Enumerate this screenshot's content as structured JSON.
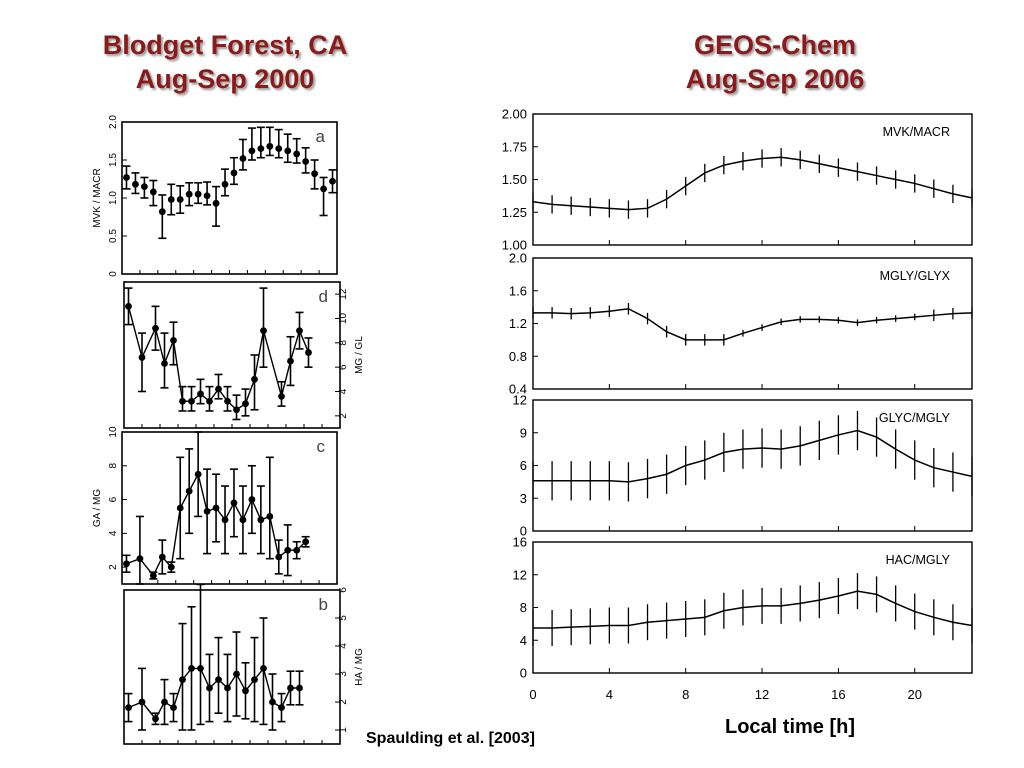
{
  "titles": {
    "left_line1": "Blodget Forest, CA",
    "left_line2": "Aug-Sep 2000",
    "right_line1": "GEOS-Chem",
    "right_line2": "Aug-Sep 2006"
  },
  "citation": "Spaulding et al. [2003]",
  "x_axis_label": "Local time [h]",
  "colors": {
    "title": "#8b1a1a",
    "line": "#000000"
  },
  "chart_data": [
    {
      "type": "scatter",
      "panel_label": "a",
      "ylabel": "MVK / MACR",
      "ylim": [
        0,
        2.0
      ],
      "yticks": [
        "0",
        "0.5",
        "1.0",
        "1.5",
        "2.0"
      ],
      "ytick_values": [
        0,
        0.5,
        1.0,
        1.5,
        2.0
      ],
      "y_axis_side": "left",
      "connected": false,
      "grid": false,
      "xlim": [
        0,
        24
      ],
      "x": [
        0.5,
        1.5,
        2.5,
        3.5,
        4.5,
        5.5,
        6.5,
        7.5,
        8.5,
        9.5,
        10.5,
        11.5,
        12.5,
        13.5,
        14.5,
        15.5,
        16.5,
        17.5,
        18.5,
        19.5,
        20.5,
        21.5,
        22.5,
        23.5
      ],
      "y": [
        1.27,
        1.18,
        1.15,
        1.08,
        0.82,
        0.98,
        0.98,
        1.05,
        1.05,
        1.03,
        0.93,
        1.18,
        1.33,
        1.52,
        1.62,
        1.65,
        1.68,
        1.65,
        1.62,
        1.58,
        1.48,
        1.32,
        1.12,
        1.22
      ],
      "yerr_low": [
        0.15,
        0.12,
        0.15,
        0.18,
        0.35,
        0.2,
        0.18,
        0.15,
        0.12,
        0.12,
        0.3,
        0.15,
        0.15,
        0.15,
        0.12,
        0.12,
        0.12,
        0.12,
        0.15,
        0.12,
        0.15,
        0.2,
        0.35,
        0.15
      ],
      "yerr_high": [
        0.15,
        0.15,
        0.12,
        0.15,
        0.22,
        0.2,
        0.18,
        0.15,
        0.15,
        0.18,
        0.22,
        0.2,
        0.2,
        0.25,
        0.3,
        0.28,
        0.25,
        0.25,
        0.22,
        0.2,
        0.18,
        0.18,
        0.15,
        0.15
      ]
    },
    {
      "type": "line",
      "panel_label": "d",
      "ylabel": "MG / GL",
      "ylim": [
        1,
        13
      ],
      "yticks": [
        "2",
        "4",
        "6",
        "8",
        "10",
        "12"
      ],
      "ytick_values": [
        2,
        4,
        6,
        8,
        10,
        12
      ],
      "y_axis_side": "right",
      "connected": true,
      "grid": false,
      "xlim": [
        0,
        24
      ],
      "x": [
        0.5,
        2.0,
        3.5,
        4.5,
        5.5,
        6.5,
        7.5,
        8.5,
        9.5,
        10.5,
        11.5,
        12.5,
        13.5,
        14.5,
        15.5,
        17.5,
        18.5,
        19.5,
        20.5
      ],
      "y": [
        11.0,
        6.8,
        9.2,
        6.3,
        8.2,
        3.2,
        3.2,
        3.8,
        3.2,
        4.2,
        3.2,
        2.5,
        3.0,
        5.0,
        9.0,
        3.6,
        6.5,
        9.0,
        7.2
      ],
      "yerr_low": [
        1.5,
        2.8,
        1.8,
        2.0,
        2.0,
        0.8,
        0.8,
        0.8,
        0.8,
        0.8,
        0.8,
        0.8,
        1.0,
        2.5,
        3.0,
        0.8,
        2.0,
        1.5,
        1.2
      ],
      "yerr_high": [
        1.5,
        2.0,
        1.8,
        2.5,
        1.5,
        1.2,
        1.2,
        1.2,
        1.2,
        1.2,
        1.2,
        1.2,
        1.2,
        2.0,
        3.5,
        1.2,
        2.0,
        1.5,
        1.2
      ]
    },
    {
      "type": "line",
      "panel_label": "c",
      "ylabel": "GA / MG",
      "ylim": [
        1,
        10
      ],
      "yticks": [
        "2",
        "4",
        "6",
        "8",
        "10"
      ],
      "ytick_values": [
        2,
        4,
        6,
        8,
        10
      ],
      "y_axis_side": "left",
      "connected": true,
      "grid": false,
      "xlim": [
        0,
        24
      ],
      "x": [
        0.5,
        2.0,
        3.5,
        4.5,
        5.5,
        6.5,
        7.5,
        8.5,
        9.5,
        10.5,
        11.5,
        12.5,
        13.5,
        14.5,
        15.5,
        16.5,
        17.5,
        18.5,
        19.5,
        20.5
      ],
      "y": [
        2.2,
        2.5,
        1.5,
        2.6,
        2.0,
        5.5,
        6.5,
        7.5,
        5.3,
        5.5,
        4.8,
        5.8,
        4.8,
        6.0,
        4.8,
        5.0,
        2.6,
        3.0,
        3.0,
        3.5
      ],
      "yerr_low": [
        0.5,
        1.5,
        0.2,
        1.0,
        0.3,
        3.0,
        2.5,
        2.5,
        2.5,
        2.0,
        2.0,
        2.0,
        2.0,
        2.0,
        2.0,
        2.5,
        1.0,
        1.5,
        0.5,
        0.3
      ],
      "yerr_high": [
        0.5,
        2.5,
        0.2,
        1.0,
        0.3,
        3.0,
        2.5,
        2.5,
        2.5,
        2.0,
        2.0,
        2.0,
        2.0,
        2.0,
        2.0,
        3.5,
        1.0,
        1.5,
        0.5,
        0.3
      ]
    },
    {
      "type": "line",
      "panel_label": "b",
      "ylabel": "HA / MG",
      "ylim": [
        0.5,
        6
      ],
      "yticks": [
        "1",
        "2",
        "3",
        "4",
        "5",
        "6"
      ],
      "ytick_values": [
        1,
        2,
        3,
        4,
        5,
        6
      ],
      "y_axis_side": "right",
      "connected": true,
      "grid": false,
      "xlim": [
        0,
        24
      ],
      "x": [
        0.5,
        2.0,
        3.5,
        4.5,
        5.5,
        6.5,
        7.5,
        8.5,
        9.5,
        10.5,
        11.5,
        12.5,
        13.5,
        14.5,
        15.5,
        16.5,
        17.5,
        18.5,
        19.5
      ],
      "y": [
        1.8,
        2.0,
        1.4,
        2.0,
        1.8,
        2.8,
        3.2,
        3.2,
        2.5,
        2.8,
        2.5,
        3.0,
        2.4,
        2.8,
        3.2,
        2.0,
        1.8,
        2.5,
        2.5
      ],
      "yerr_low": [
        0.5,
        1.0,
        0.2,
        0.8,
        0.5,
        1.8,
        2.2,
        2.0,
        1.2,
        1.2,
        1.2,
        1.5,
        1.0,
        1.5,
        2.0,
        1.0,
        0.5,
        0.6,
        0.6
      ],
      "yerr_high": [
        0.5,
        1.2,
        0.2,
        0.8,
        0.5,
        2.0,
        2.2,
        3.0,
        1.2,
        1.5,
        1.2,
        1.5,
        1.0,
        1.5,
        1.8,
        1.0,
        0.5,
        0.6,
        0.6
      ]
    },
    {
      "type": "line",
      "series_label": "MVK/MACR",
      "ylim": [
        1.0,
        2.0
      ],
      "yticks": [
        "1.00",
        "1.25",
        "1.50",
        "1.75",
        "2.00"
      ],
      "ytick_values": [
        1.0,
        1.25,
        1.5,
        1.75,
        2.0
      ],
      "xlim": [
        0,
        23
      ],
      "y_axis_side": "left",
      "grid": false,
      "x": [
        0,
        1,
        2,
        3,
        4,
        5,
        6,
        7,
        8,
        9,
        10,
        11,
        12,
        13,
        14,
        15,
        16,
        17,
        18,
        19,
        20,
        21,
        22,
        23
      ],
      "y": [
        1.33,
        1.31,
        1.3,
        1.29,
        1.28,
        1.27,
        1.28,
        1.35,
        1.45,
        1.55,
        1.61,
        1.64,
        1.66,
        1.67,
        1.65,
        1.62,
        1.59,
        1.56,
        1.53,
        1.5,
        1.47,
        1.43,
        1.39,
        1.36
      ],
      "err": [
        0.07,
        0.07,
        0.07,
        0.07,
        0.07,
        0.07,
        0.07,
        0.07,
        0.07,
        0.07,
        0.07,
        0.07,
        0.07,
        0.07,
        0.07,
        0.07,
        0.07,
        0.07,
        0.07,
        0.07,
        0.07,
        0.07,
        0.07,
        0.07
      ]
    },
    {
      "type": "line",
      "series_label": "MGLY/GLYX",
      "ylim": [
        0.4,
        2.0
      ],
      "yticks": [
        "0.4",
        "0.8",
        "1.2",
        "1.6",
        "2.0"
      ],
      "ytick_values": [
        0.4,
        0.8,
        1.2,
        1.6,
        2.0
      ],
      "xlim": [
        0,
        23
      ],
      "y_axis_side": "left",
      "grid": false,
      "x": [
        0,
        1,
        2,
        3,
        4,
        5,
        6,
        7,
        8,
        9,
        10,
        11,
        12,
        13,
        14,
        15,
        16,
        17,
        18,
        19,
        20,
        21,
        22,
        23
      ],
      "y": [
        1.33,
        1.33,
        1.32,
        1.33,
        1.35,
        1.38,
        1.26,
        1.1,
        1.0,
        1.0,
        1.0,
        1.08,
        1.15,
        1.22,
        1.25,
        1.25,
        1.24,
        1.21,
        1.24,
        1.26,
        1.28,
        1.3,
        1.32,
        1.33
      ],
      "err": [
        0.07,
        0.07,
        0.07,
        0.07,
        0.07,
        0.07,
        0.07,
        0.07,
        0.07,
        0.07,
        0.07,
        0.04,
        0.04,
        0.04,
        0.04,
        0.04,
        0.04,
        0.04,
        0.04,
        0.04,
        0.04,
        0.07,
        0.07,
        0.07
      ]
    },
    {
      "type": "line",
      "series_label": "GLYC/MGLY",
      "ylim": [
        0,
        12
      ],
      "yticks": [
        "0",
        "3",
        "6",
        "9",
        "12"
      ],
      "ytick_values": [
        0,
        3,
        6,
        9,
        12
      ],
      "xlim": [
        0,
        23
      ],
      "y_axis_side": "left",
      "grid": false,
      "x": [
        0,
        1,
        2,
        3,
        4,
        5,
        6,
        7,
        8,
        9,
        10,
        11,
        12,
        13,
        14,
        15,
        16,
        17,
        18,
        19,
        20,
        21,
        22,
        23
      ],
      "y": [
        4.6,
        4.6,
        4.6,
        4.6,
        4.6,
        4.5,
        4.8,
        5.2,
        6.0,
        6.5,
        7.2,
        7.5,
        7.6,
        7.5,
        7.8,
        8.3,
        8.8,
        9.2,
        8.6,
        7.5,
        6.5,
        5.8,
        5.4,
        5.0
      ],
      "err": [
        1.8,
        1.8,
        1.8,
        1.8,
        1.8,
        1.8,
        1.8,
        1.8,
        1.8,
        1.8,
        1.8,
        1.8,
        1.8,
        1.8,
        1.8,
        1.8,
        1.8,
        1.8,
        1.8,
        1.8,
        1.8,
        1.8,
        1.8,
        1.8
      ]
    },
    {
      "type": "line",
      "series_label": "HAC/MGLY",
      "ylim": [
        0,
        16
      ],
      "yticks": [
        "0",
        "4",
        "8",
        "12",
        "16"
      ],
      "ytick_values": [
        0,
        4,
        8,
        12,
        16
      ],
      "xlim": [
        0,
        23
      ],
      "xticks": [
        "0",
        "4",
        "8",
        "12",
        "16",
        "20"
      ],
      "xtick_values": [
        0,
        4,
        8,
        12,
        16,
        20
      ],
      "y_axis_side": "left",
      "grid": false,
      "x": [
        0,
        1,
        2,
        3,
        4,
        5,
        6,
        7,
        8,
        9,
        10,
        11,
        12,
        13,
        14,
        15,
        16,
        17,
        18,
        19,
        20,
        21,
        22,
        23
      ],
      "y": [
        5.5,
        5.5,
        5.6,
        5.7,
        5.8,
        5.8,
        6.2,
        6.4,
        6.6,
        6.8,
        7.6,
        8.0,
        8.2,
        8.2,
        8.5,
        8.9,
        9.4,
        10.0,
        9.6,
        8.5,
        7.5,
        6.8,
        6.2,
        5.8
      ],
      "err": [
        2.2,
        2.2,
        2.2,
        2.2,
        2.2,
        2.2,
        2.2,
        2.2,
        2.2,
        2.2,
        2.2,
        2.2,
        2.2,
        2.2,
        2.2,
        2.2,
        2.2,
        2.2,
        2.2,
        2.2,
        2.2,
        2.2,
        2.2,
        2.2
      ]
    }
  ]
}
